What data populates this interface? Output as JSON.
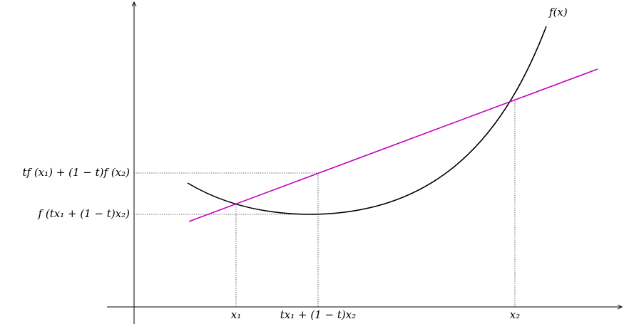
{
  "labels": {
    "curve": "f(x)",
    "chord_value": "tf (x₁) + (1 − t)f (x₂)",
    "function_value": "f (tx₁ + (1 − t)x₂)",
    "x1": "x₁",
    "mix": "tx₁ + (1 − t)x₂",
    "x2": "x₂"
  }
}
